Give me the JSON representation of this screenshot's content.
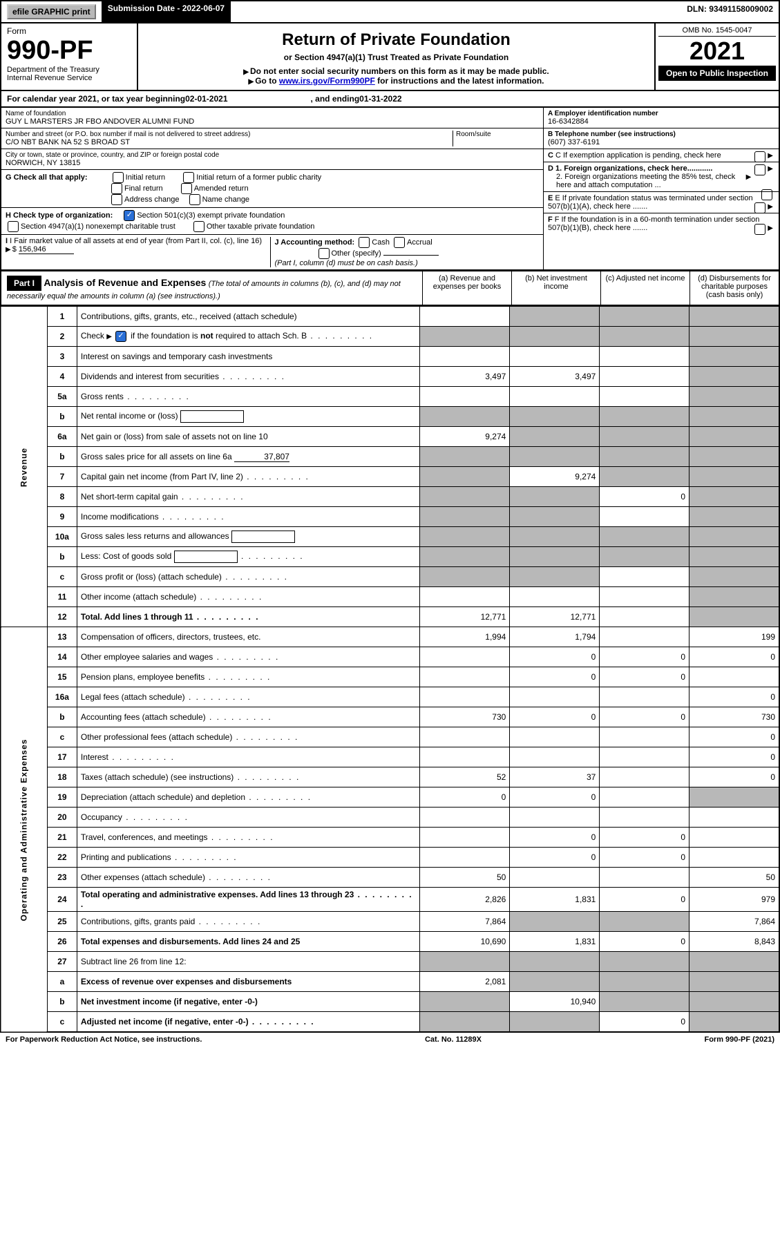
{
  "top_bar": {
    "efile": "efile GRAPHIC print",
    "sub_date_label": "Submission Date - 2022-06-07",
    "dln": "DLN: 93491158009002"
  },
  "header": {
    "form_label": "Form",
    "form_no": "990-PF",
    "dept": "Department of the Treasury",
    "irs": "Internal Revenue Service",
    "title": "Return of Private Foundation",
    "subtitle": "or Section 4947(a)(1) Trust Treated as Private Foundation",
    "instr1": "Do not enter social security numbers on this form as it may be made public.",
    "instr2_pre": "Go to ",
    "instr2_link": "www.irs.gov/Form990PF",
    "instr2_post": " for instructions and the latest information.",
    "omb": "OMB No. 1545-0047",
    "year": "2021",
    "open": "Open to Public Inspection"
  },
  "cal_year": {
    "pre": "For calendar year 2021, or tax year beginning ",
    "begin": "02-01-2021",
    "mid": ", and ending ",
    "end": "01-31-2022"
  },
  "info": {
    "name_label": "Name of foundation",
    "name": "GUY L MARSTERS JR FBO ANDOVER ALUMNI FUND",
    "addr_label": "Number and street (or P.O. box number if mail is not delivered to street address)",
    "addr": "C/O NBT BANK NA 52 S BROAD ST",
    "room_label": "Room/suite",
    "city_label": "City or town, state or province, country, and ZIP or foreign postal code",
    "city": "NORWICH, NY  13815",
    "ein_label": "A Employer identification number",
    "ein": "16-6342884",
    "tel_label": "B Telephone number (see instructions)",
    "tel": "(607) 337-6191",
    "c_label": "C If exemption application is pending, check here",
    "g_label": "G Check all that apply:",
    "g_opts": [
      "Initial return",
      "Initial return of a former public charity",
      "Final return",
      "Amended return",
      "Address change",
      "Name change"
    ],
    "d1": "D 1. Foreign organizations, check here............",
    "d2": "2. Foreign organizations meeting the 85% test, check here and attach computation ...",
    "h_label": "H Check type of organization:",
    "h_opts": [
      "Section 501(c)(3) exempt private foundation",
      "Section 4947(a)(1) nonexempt charitable trust",
      "Other taxable private foundation"
    ],
    "e_label": "E If private foundation status was terminated under section 507(b)(1)(A), check here .......",
    "i_label": "I Fair market value of all assets at end of year (from Part II, col. (c), line 16)",
    "i_val": "156,946",
    "j_label": "J Accounting method:",
    "j_opts": [
      "Cash",
      "Accrual",
      "Other (specify)"
    ],
    "j_note": "(Part I, column (d) must be on cash basis.)",
    "f_label": "F If the foundation is in a 60-month termination under section 507(b)(1)(B), check here ......."
  },
  "part1": {
    "label": "Part I",
    "title": "Analysis of Revenue and Expenses",
    "note": "(The total of amounts in columns (b), (c), and (d) may not necessarily equal the amounts in column (a) (see instructions).)",
    "col_a": "(a)   Revenue and expenses per books",
    "col_b": "(b)   Net investment income",
    "col_c": "(c)   Adjusted net income",
    "col_d": "(d)   Disbursements for charitable purposes (cash basis only)"
  },
  "revenue_label": "Revenue",
  "expenses_label": "Operating and Administrative Expenses",
  "rows": [
    {
      "no": "1",
      "desc": "Contributions, gifts, grants, etc., received (attach schedule)",
      "a": "",
      "b": "g",
      "c": "g",
      "d": "g"
    },
    {
      "no": "2",
      "desc": "Check ▶ ☑ if the foundation is not required to attach Sch. B",
      "dots": true,
      "a": "g",
      "b": "g",
      "c": "g",
      "d": "g",
      "checkbox": true
    },
    {
      "no": "3",
      "desc": "Interest on savings and temporary cash investments",
      "a": "",
      "b": "",
      "c": "",
      "d": "g"
    },
    {
      "no": "4",
      "desc": "Dividends and interest from securities",
      "dots": true,
      "a": "3,497",
      "b": "3,497",
      "c": "",
      "d": "g"
    },
    {
      "no": "5a",
      "desc": "Gross rents",
      "dots": true,
      "a": "",
      "b": "",
      "c": "",
      "d": "g"
    },
    {
      "no": "b",
      "desc": "Net rental income or (loss)",
      "box": true,
      "a": "g",
      "b": "g",
      "c": "g",
      "d": "g"
    },
    {
      "no": "6a",
      "desc": "Net gain or (loss) from sale of assets not on line 10",
      "a": "9,274",
      "b": "g",
      "c": "g",
      "d": "g"
    },
    {
      "no": "b",
      "desc": "Gross sales price for all assets on line 6a",
      "val_inline": "37,807",
      "a": "g",
      "b": "g",
      "c": "g",
      "d": "g"
    },
    {
      "no": "7",
      "desc": "Capital gain net income (from Part IV, line 2)",
      "dots": true,
      "a": "g",
      "b": "9,274",
      "c": "g",
      "d": "g"
    },
    {
      "no": "8",
      "desc": "Net short-term capital gain",
      "dots": true,
      "a": "g",
      "b": "g",
      "c": "0",
      "d": "g"
    },
    {
      "no": "9",
      "desc": "Income modifications",
      "dots": true,
      "a": "g",
      "b": "g",
      "c": "",
      "d": "g"
    },
    {
      "no": "10a",
      "desc": "Gross sales less returns and allowances",
      "box": true,
      "a": "g",
      "b": "g",
      "c": "g",
      "d": "g"
    },
    {
      "no": "b",
      "desc": "Less: Cost of goods sold",
      "dots": true,
      "box": true,
      "a": "g",
      "b": "g",
      "c": "g",
      "d": "g"
    },
    {
      "no": "c",
      "desc": "Gross profit or (loss) (attach schedule)",
      "dots": true,
      "a": "g",
      "b": "g",
      "c": "",
      "d": "g"
    },
    {
      "no": "11",
      "desc": "Other income (attach schedule)",
      "dots": true,
      "a": "",
      "b": "",
      "c": "",
      "d": "g"
    },
    {
      "no": "12",
      "desc": "Total. Add lines 1 through 11",
      "dots": true,
      "bold": true,
      "a": "12,771",
      "b": "12,771",
      "c": "",
      "d": "g"
    },
    {
      "no": "13",
      "desc": "Compensation of officers, directors, trustees, etc.",
      "a": "1,994",
      "b": "1,794",
      "c": "",
      "d": "199"
    },
    {
      "no": "14",
      "desc": "Other employee salaries and wages",
      "dots": true,
      "a": "",
      "b": "0",
      "c": "0",
      "d": "0"
    },
    {
      "no": "15",
      "desc": "Pension plans, employee benefits",
      "dots": true,
      "a": "",
      "b": "0",
      "c": "0",
      "d": ""
    },
    {
      "no": "16a",
      "desc": "Legal fees (attach schedule)",
      "dots": true,
      "a": "",
      "b": "",
      "c": "",
      "d": "0"
    },
    {
      "no": "b",
      "desc": "Accounting fees (attach schedule)",
      "dots": true,
      "a": "730",
      "b": "0",
      "c": "0",
      "d": "730"
    },
    {
      "no": "c",
      "desc": "Other professional fees (attach schedule)",
      "dots": true,
      "a": "",
      "b": "",
      "c": "",
      "d": "0"
    },
    {
      "no": "17",
      "desc": "Interest",
      "dots": true,
      "a": "",
      "b": "",
      "c": "",
      "d": "0"
    },
    {
      "no": "18",
      "desc": "Taxes (attach schedule) (see instructions)",
      "dots": true,
      "a": "52",
      "b": "37",
      "c": "",
      "d": "0"
    },
    {
      "no": "19",
      "desc": "Depreciation (attach schedule) and depletion",
      "dots": true,
      "a": "0",
      "b": "0",
      "c": "",
      "d": "g"
    },
    {
      "no": "20",
      "desc": "Occupancy",
      "dots": true,
      "a": "",
      "b": "",
      "c": "",
      "d": ""
    },
    {
      "no": "21",
      "desc": "Travel, conferences, and meetings",
      "dots": true,
      "a": "",
      "b": "0",
      "c": "0",
      "d": ""
    },
    {
      "no": "22",
      "desc": "Printing and publications",
      "dots": true,
      "a": "",
      "b": "0",
      "c": "0",
      "d": ""
    },
    {
      "no": "23",
      "desc": "Other expenses (attach schedule)",
      "dots": true,
      "a": "50",
      "b": "",
      "c": "",
      "d": "50"
    },
    {
      "no": "24",
      "desc": "Total operating and administrative expenses. Add lines 13 through 23",
      "dots": true,
      "bold": true,
      "a": "2,826",
      "b": "1,831",
      "c": "0",
      "d": "979"
    },
    {
      "no": "25",
      "desc": "Contributions, gifts, grants paid",
      "dots": true,
      "a": "7,864",
      "b": "g",
      "c": "g",
      "d": "7,864"
    },
    {
      "no": "26",
      "desc": "Total expenses and disbursements. Add lines 24 and 25",
      "bold": true,
      "a": "10,690",
      "b": "1,831",
      "c": "0",
      "d": "8,843"
    },
    {
      "no": "27",
      "desc": "Subtract line 26 from line 12:",
      "a": "g",
      "b": "g",
      "c": "g",
      "d": "g"
    },
    {
      "no": "a",
      "desc": "Excess of revenue over expenses and disbursements",
      "bold": true,
      "a": "2,081",
      "b": "g",
      "c": "g",
      "d": "g"
    },
    {
      "no": "b",
      "desc": "Net investment income (if negative, enter -0-)",
      "bold": true,
      "a": "g",
      "b": "10,940",
      "c": "g",
      "d": "g"
    },
    {
      "no": "c",
      "desc": "Adjusted net income (if negative, enter -0-)",
      "dots": true,
      "bold": true,
      "a": "g",
      "b": "g",
      "c": "0",
      "d": "g"
    }
  ],
  "footer": {
    "left": "For Paperwork Reduction Act Notice, see instructions.",
    "mid": "Cat. No. 11289X",
    "right": "Form 990-PF (2021)"
  },
  "colors": {
    "black": "#000000",
    "grey": "#b8b8b8",
    "link": "#0000cc",
    "check": "#2a6fd6"
  }
}
